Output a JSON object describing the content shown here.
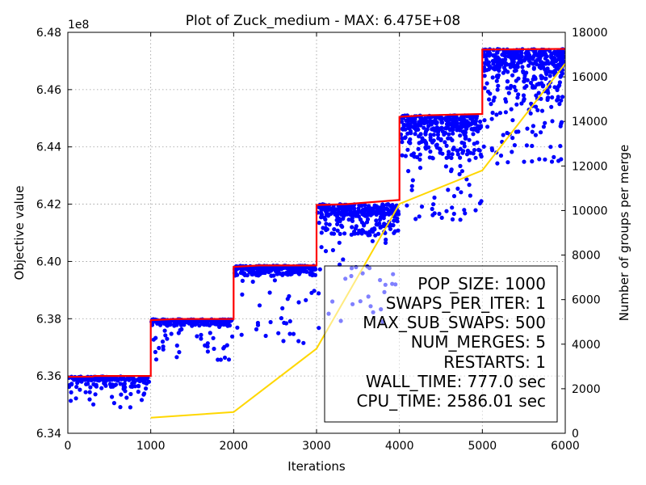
{
  "chart_data": {
    "type": "scatter",
    "title": "Plot of Zuck_medium - MAX: 6.475E+08",
    "xlabel": "Iterations",
    "ylabel": "Objective value",
    "y2label": "Number of groups per merge",
    "y_offset_label": "1e8",
    "xlim": [
      0,
      6000
    ],
    "ylim": [
      6.34,
      6.48
    ],
    "y2lim": [
      0,
      18000
    ],
    "grid": true,
    "x_ticks": [
      "0",
      "1000",
      "2000",
      "3000",
      "4000",
      "5000",
      "6000"
    ],
    "y_ticks": [
      "6.34",
      "6.36",
      "6.38",
      "6.40",
      "6.42",
      "6.44",
      "6.46",
      "6.48"
    ],
    "y2_ticks": [
      "0",
      "2000",
      "4000",
      "6000",
      "8000",
      "10000",
      "12000",
      "14000",
      "16000",
      "18000"
    ],
    "series": [
      {
        "role": "best_objective_step",
        "color": "#ff0000",
        "points": [
          [
            0,
            6.3597
          ],
          [
            300,
            6.3598
          ],
          [
            320,
            6.36
          ],
          [
            1000,
            6.36
          ],
          [
            1000,
            6.3795
          ],
          [
            1300,
            6.3799
          ],
          [
            2000,
            6.3799
          ],
          [
            2000,
            6.3981
          ],
          [
            2300,
            6.3986
          ],
          [
            3000,
            6.3986
          ],
          [
            3000,
            6.4197
          ],
          [
            3350,
            6.42
          ],
          [
            4000,
            6.4215
          ],
          [
            4000,
            6.4505
          ],
          [
            4300,
            6.451
          ],
          [
            5000,
            6.4515
          ],
          [
            5000,
            6.474
          ],
          [
            6000,
            6.4742
          ]
        ]
      },
      {
        "role": "population_objective_scatter",
        "color": "#0000ff",
        "segments": [
          {
            "x": [
              0,
              1000
            ],
            "top": 6.3598,
            "dense_bottom": 6.356,
            "min": 6.349
          },
          {
            "x": [
              1000,
              2000
            ],
            "top": 6.3798,
            "dense_bottom": 6.3775,
            "min": 6.365
          },
          {
            "x": [
              2000,
              3000
            ],
            "top": 6.3985,
            "dense_bottom": 6.395,
            "min": 6.3715
          },
          {
            "x": [
              3000,
              4000
            ],
            "top": 6.42,
            "dense_bottom": 6.409,
            "min": 6.376
          },
          {
            "x": [
              4000,
              5000
            ],
            "top": 6.451,
            "dense_bottom": 6.436,
            "min": 6.4145
          },
          {
            "x": [
              5000,
              6000
            ],
            "top": 6.4742,
            "dense_bottom": 6.456,
            "min": 6.434
          }
        ]
      },
      {
        "role": "groups_per_merge",
        "axis": "y2",
        "color": "#ffd700",
        "points": [
          [
            1000,
            700
          ],
          [
            2000,
            950
          ],
          [
            3000,
            3800
          ],
          [
            4000,
            10300
          ],
          [
            5000,
            11800
          ],
          [
            6000,
            16600
          ]
        ]
      }
    ],
    "annotation": [
      "POP_SIZE: 1000",
      "SWAPS_PER_ITER: 1",
      "MAX_SUB_SWAPS: 500",
      "NUM_MERGES: 5",
      "RESTARTS: 1",
      "WALL_TIME: 777.0 sec",
      "CPU_TIME: 2586.01 sec"
    ]
  }
}
